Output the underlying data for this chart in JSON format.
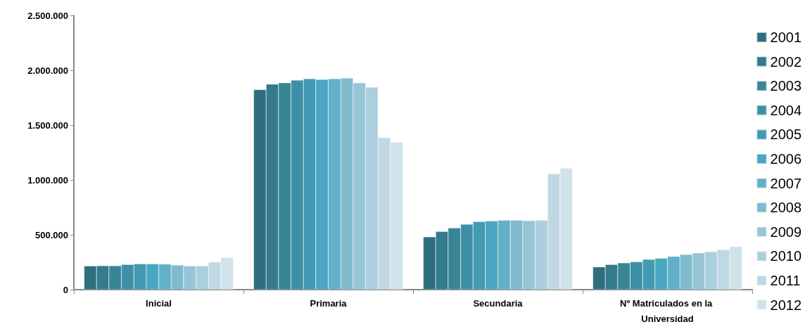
{
  "chart_data": {
    "type": "bar",
    "categories": [
      "Inicial",
      "Primaria",
      "Secundaria",
      "Nº Matriculados en la Universidad"
    ],
    "series": [
      {
        "name": "2001",
        "color": "#2e6e7e",
        "values": [
          216000,
          1824000,
          481000,
          207000
        ]
      },
      {
        "name": "2002",
        "color": "#337b8d",
        "values": [
          218000,
          1874000,
          530000,
          229000
        ]
      },
      {
        "name": "2003",
        "color": "#388596",
        "values": [
          218000,
          1886000,
          562000,
          244000
        ]
      },
      {
        "name": "2004",
        "color": "#3e90a6",
        "values": [
          229000,
          1910000,
          596000,
          254000
        ]
      },
      {
        "name": "2005",
        "color": "#429bb2",
        "values": [
          235000,
          1923000,
          620000,
          276000
        ]
      },
      {
        "name": "2006",
        "color": "#4aa6c1",
        "values": [
          235000,
          1917000,
          626000,
          286000
        ]
      },
      {
        "name": "2007",
        "color": "#62b0c9",
        "values": [
          233000,
          1923000,
          633000,
          303000
        ]
      },
      {
        "name": "2008",
        "color": "#80bacd",
        "values": [
          224000,
          1929000,
          633000,
          321000
        ]
      },
      {
        "name": "2009",
        "color": "#98c5d6",
        "values": [
          216000,
          1886000,
          630000,
          335000
        ]
      },
      {
        "name": "2010",
        "color": "#accfde",
        "values": [
          217000,
          1846000,
          633000,
          346000
        ]
      },
      {
        "name": "2011",
        "color": "#c0d8e3",
        "values": [
          252000,
          1387000,
          1056000,
          365000
        ]
      },
      {
        "name": "2012",
        "color": "#d0e3ea",
        "values": [
          293000,
          1344000,
          1107000,
          395000
        ]
      }
    ],
    "ylim": [
      0,
      2500000
    ],
    "yticks": [
      {
        "value": 0,
        "label": "0"
      },
      {
        "value": 500000,
        "label": "500.000"
      },
      {
        "value": 1000000,
        "label": "1.000.000"
      },
      {
        "value": 1500000,
        "label": "1.500.000"
      },
      {
        "value": 2000000,
        "label": "2.000.000"
      },
      {
        "value": 2500000,
        "label": "2.500.000"
      }
    ],
    "grid": false,
    "legend": "right"
  }
}
